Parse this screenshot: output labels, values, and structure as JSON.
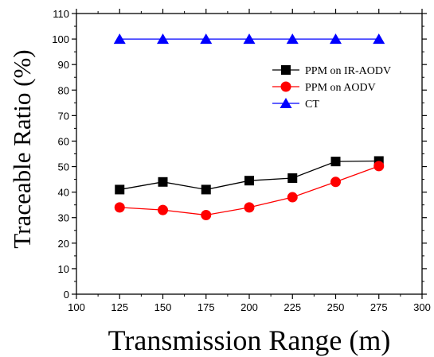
{
  "chart_data": {
    "type": "line",
    "xlabel": "Transmission Range (m)",
    "ylabel": "Traceable Ratio (%)",
    "xlim": [
      100,
      300
    ],
    "ylim": [
      0,
      110
    ],
    "xticks": [
      100,
      125,
      150,
      175,
      200,
      225,
      250,
      275,
      300
    ],
    "yticks": [
      0,
      10,
      20,
      30,
      40,
      50,
      60,
      70,
      80,
      90,
      100,
      110
    ],
    "grid": false,
    "legend_position": "right",
    "x": [
      125,
      150,
      175,
      200,
      225,
      250,
      275
    ],
    "series": [
      {
        "name": "PPM on IR-AODV",
        "marker": "square",
        "color": "#000000",
        "values": [
          41,
          44,
          41,
          44.5,
          45.5,
          52,
          52.2
        ]
      },
      {
        "name": "PPM on AODV",
        "marker": "circle",
        "color": "#ff0000",
        "values": [
          34,
          33,
          31,
          34,
          38,
          44,
          50.2
        ]
      },
      {
        "name": "CT",
        "marker": "triangle",
        "color": "#0000ff",
        "values": [
          100,
          100,
          100,
          100,
          100,
          100,
          100
        ]
      }
    ]
  }
}
